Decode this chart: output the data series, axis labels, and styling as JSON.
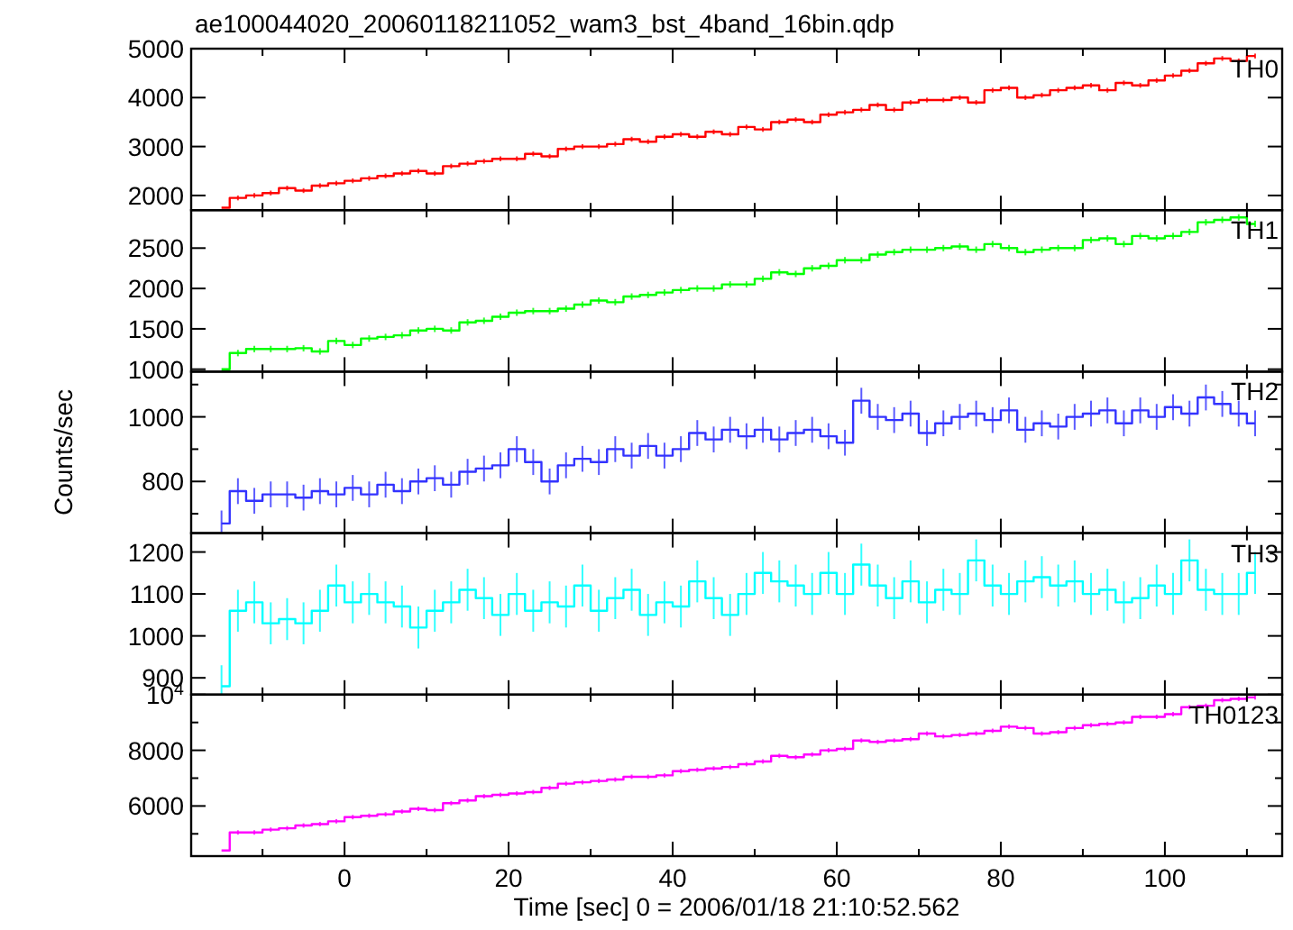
{
  "chart_data": [
    {
      "type": "step",
      "title": "ae100044020_20060118211052_wam3_bst_4band_16bin.qdp",
      "x": [
        -15,
        -13,
        -11,
        -9,
        -7,
        -5,
        -3,
        -1,
        1,
        3,
        5,
        7,
        9,
        11,
        13,
        15,
        17,
        19,
        21,
        23,
        25,
        27,
        29,
        31,
        33,
        35,
        37,
        39,
        41,
        43,
        45,
        47,
        49,
        51,
        53,
        55,
        57,
        59,
        61,
        63,
        65,
        67,
        69,
        71,
        73,
        75,
        77,
        79,
        81,
        83,
        85,
        87,
        89,
        91,
        93,
        95,
        97,
        99,
        101,
        103,
        105,
        107,
        109,
        111
      ],
      "xlim": [
        -18.7,
        114.3
      ],
      "xticks": [
        0,
        20,
        40,
        60,
        80,
        100,
        {
          "value": -10,
          "label": null
        },
        {
          "value": 10,
          "label": null
        },
        {
          "value": 30,
          "label": null
        },
        {
          "value": 50,
          "label": null
        },
        {
          "value": 70,
          "label": null
        },
        {
          "value": 90,
          "label": null
        },
        {
          "value": 110,
          "label": null
        }
      ],
      "ylim": [
        1700,
        5000
      ],
      "yticks": [
        2000,
        3000,
        4000,
        5000
      ],
      "tick_labels": "y",
      "annotations": [
        "TH0"
      ],
      "series": [
        {
          "color": "#ff0000",
          "values": [
            1750,
            1950,
            2000,
            2050,
            2150,
            2100,
            2200,
            2250,
            2300,
            2350,
            2400,
            2450,
            2500,
            2450,
            2600,
            2650,
            2700,
            2750,
            2750,
            2850,
            2800,
            2950,
            3000,
            3000,
            3050,
            3150,
            3100,
            3200,
            3250,
            3200,
            3300,
            3250,
            3400,
            3350,
            3500,
            3550,
            3500,
            3650,
            3700,
            3750,
            3850,
            3750,
            3900,
            3950,
            3950,
            4000,
            3900,
            4150,
            4200,
            4000,
            4050,
            4150,
            4200,
            4250,
            4150,
            4300,
            4250,
            4350,
            4450,
            4550,
            4700,
            4800,
            4750,
            4850
          ],
          "errors": [
            null,
            50,
            50,
            50,
            50,
            50,
            50,
            50,
            50,
            50,
            50,
            50,
            50,
            50,
            50,
            50,
            50,
            50,
            50,
            50,
            50,
            50,
            50,
            50,
            50,
            50,
            50,
            50,
            50,
            50,
            50,
            50,
            50,
            50,
            50,
            50,
            50,
            50,
            50,
            50,
            50,
            50,
            50,
            50,
            50,
            50,
            50,
            50,
            50,
            50,
            50,
            50,
            50,
            50,
            50,
            50,
            50,
            50,
            50,
            50,
            50,
            50,
            50,
            50
          ]
        }
      ]
    },
    {
      "type": "step",
      "x": [
        -15,
        -13,
        -11,
        -9,
        -7,
        -5,
        -3,
        -1,
        1,
        3,
        5,
        7,
        9,
        11,
        13,
        15,
        17,
        19,
        21,
        23,
        25,
        27,
        29,
        31,
        33,
        35,
        37,
        39,
        41,
        43,
        45,
        47,
        49,
        51,
        53,
        55,
        57,
        59,
        61,
        63,
        65,
        67,
        69,
        71,
        73,
        75,
        77,
        79,
        81,
        83,
        85,
        87,
        89,
        91,
        93,
        95,
        97,
        99,
        101,
        103,
        105,
        107,
        109,
        111
      ],
      "xlim": [
        -18.7,
        114.3
      ],
      "xticks": [
        0,
        20,
        40,
        60,
        80,
        100,
        {
          "value": -10,
          "label": null
        },
        {
          "value": 10,
          "label": null
        },
        {
          "value": 30,
          "label": null
        },
        {
          "value": 50,
          "label": null
        },
        {
          "value": 70,
          "label": null
        },
        {
          "value": 90,
          "label": null
        },
        {
          "value": 110,
          "label": null
        }
      ],
      "ylim": [
        970,
        2970
      ],
      "yticks": [
        1000,
        1500,
        2000,
        2500
      ],
      "tick_labels": "y",
      "annotations": [
        "TH1"
      ],
      "series": [
        {
          "color": "#00ff00",
          "values": [
            1000,
            1200,
            1250,
            1250,
            1250,
            1260,
            1220,
            1350,
            1300,
            1380,
            1400,
            1420,
            1480,
            1500,
            1480,
            1580,
            1600,
            1650,
            1700,
            1720,
            1720,
            1750,
            1800,
            1850,
            1830,
            1900,
            1920,
            1950,
            1980,
            2000,
            2000,
            2050,
            2050,
            2120,
            2200,
            2180,
            2250,
            2280,
            2350,
            2350,
            2420,
            2450,
            2480,
            2480,
            2500,
            2520,
            2480,
            2550,
            2500,
            2450,
            2480,
            2500,
            2500,
            2600,
            2620,
            2550,
            2650,
            2620,
            2650,
            2700,
            2820,
            2850,
            2880,
            2800
          ],
          "errors": [
            null,
            40,
            40,
            40,
            40,
            40,
            40,
            40,
            40,
            40,
            40,
            40,
            40,
            40,
            40,
            40,
            40,
            40,
            40,
            40,
            40,
            40,
            40,
            40,
            40,
            40,
            40,
            40,
            40,
            40,
            40,
            40,
            40,
            40,
            40,
            40,
            40,
            40,
            40,
            40,
            40,
            40,
            40,
            40,
            40,
            40,
            40,
            40,
            40,
            40,
            40,
            40,
            40,
            40,
            40,
            40,
            40,
            40,
            40,
            40,
            40,
            40,
            40,
            40
          ]
        }
      ]
    },
    {
      "type": "step",
      "ylabel": "Counts/sec",
      "x": [
        -15,
        -13,
        -11,
        -9,
        -7,
        -5,
        -3,
        -1,
        1,
        3,
        5,
        7,
        9,
        11,
        13,
        15,
        17,
        19,
        21,
        23,
        25,
        27,
        29,
        31,
        33,
        35,
        37,
        39,
        41,
        43,
        45,
        47,
        49,
        51,
        53,
        55,
        57,
        59,
        61,
        63,
        65,
        67,
        69,
        71,
        73,
        75,
        77,
        79,
        81,
        83,
        85,
        87,
        89,
        91,
        93,
        95,
        97,
        99,
        101,
        103,
        105,
        107,
        109,
        111
      ],
      "xlim": [
        -18.7,
        114.3
      ],
      "xticks": [
        0,
        20,
        40,
        60,
        80,
        100,
        {
          "value": -10,
          "label": null
        },
        {
          "value": 10,
          "label": null
        },
        {
          "value": 30,
          "label": null
        },
        {
          "value": 50,
          "label": null
        },
        {
          "value": 70,
          "label": null
        },
        {
          "value": 90,
          "label": null
        },
        {
          "value": 110,
          "label": null
        }
      ],
      "ylim": [
        640,
        1140
      ],
      "yticks": [
        800,
        1000,
        {
          "value": 700,
          "label": null
        },
        {
          "value": 900,
          "label": null
        },
        {
          "value": 1100,
          "label": null
        }
      ],
      "tick_labels": "y",
      "annotations": [
        "TH2"
      ],
      "series": [
        {
          "color": "#3333ff",
          "values": [
            670,
            770,
            740,
            760,
            760,
            750,
            770,
            760,
            780,
            760,
            790,
            770,
            800,
            810,
            790,
            830,
            840,
            850,
            900,
            860,
            800,
            850,
            870,
            860,
            900,
            880,
            910,
            880,
            900,
            950,
            930,
            960,
            940,
            960,
            930,
            950,
            960,
            940,
            920,
            1050,
            1000,
            990,
            1010,
            950,
            980,
            1000,
            1010,
            990,
            1020,
            960,
            980,
            970,
            1000,
            1010,
            1020,
            980,
            1020,
            1000,
            1030,
            1010,
            1060,
            1040,
            1010,
            980
          ],
          "errors": [
            40,
            40,
            40,
            40,
            40,
            40,
            40,
            40,
            40,
            40,
            40,
            40,
            40,
            40,
            40,
            40,
            40,
            40,
            40,
            40,
            40,
            40,
            40,
            40,
            40,
            40,
            40,
            40,
            40,
            40,
            40,
            40,
            40,
            40,
            40,
            40,
            40,
            40,
            40,
            40,
            40,
            40,
            40,
            40,
            40,
            40,
            40,
            40,
            40,
            40,
            40,
            40,
            40,
            40,
            40,
            40,
            40,
            40,
            40,
            40,
            40,
            40,
            40,
            40
          ]
        }
      ]
    },
    {
      "type": "step",
      "x": [
        -15,
        -13,
        -11,
        -9,
        -7,
        -5,
        -3,
        -1,
        1,
        3,
        5,
        7,
        9,
        11,
        13,
        15,
        17,
        19,
        21,
        23,
        25,
        27,
        29,
        31,
        33,
        35,
        37,
        39,
        41,
        43,
        45,
        47,
        49,
        51,
        53,
        55,
        57,
        59,
        61,
        63,
        65,
        67,
        69,
        71,
        73,
        75,
        77,
        79,
        81,
        83,
        85,
        87,
        89,
        91,
        93,
        95,
        97,
        99,
        101,
        103,
        105,
        107,
        109,
        111
      ],
      "xlim": [
        -18.7,
        114.3
      ],
      "xticks": [
        0,
        20,
        40,
        60,
        80,
        100,
        {
          "value": -10,
          "label": null
        },
        {
          "value": 10,
          "label": null
        },
        {
          "value": 30,
          "label": null
        },
        {
          "value": 50,
          "label": null
        },
        {
          "value": 70,
          "label": null
        },
        {
          "value": 90,
          "label": null
        },
        {
          "value": 110,
          "label": null
        }
      ],
      "ylim": [
        860,
        1245
      ],
      "yticks": [
        900,
        1000,
        1100,
        1200
      ],
      "tick_labels": "y",
      "annotations": [
        "TH3"
      ],
      "series": [
        {
          "color": "#00ffff",
          "values": [
            880,
            1060,
            1080,
            1030,
            1040,
            1030,
            1060,
            1120,
            1080,
            1100,
            1080,
            1070,
            1020,
            1060,
            1080,
            1110,
            1090,
            1050,
            1100,
            1060,
            1080,
            1070,
            1120,
            1060,
            1090,
            1110,
            1050,
            1080,
            1070,
            1130,
            1090,
            1050,
            1100,
            1150,
            1130,
            1120,
            1100,
            1150,
            1100,
            1170,
            1120,
            1090,
            1130,
            1080,
            1110,
            1100,
            1180,
            1120,
            1100,
            1130,
            1140,
            1120,
            1130,
            1100,
            1110,
            1080,
            1090,
            1120,
            1100,
            1180,
            1110,
            1100,
            1100,
            1150
          ],
          "errors": [
            50,
            50,
            50,
            50,
            50,
            50,
            50,
            50,
            50,
            50,
            50,
            50,
            50,
            50,
            50,
            50,
            50,
            50,
            50,
            50,
            50,
            50,
            50,
            50,
            50,
            50,
            50,
            50,
            50,
            50,
            50,
            50,
            50,
            50,
            50,
            50,
            50,
            50,
            50,
            50,
            50,
            50,
            50,
            50,
            50,
            50,
            50,
            50,
            50,
            50,
            50,
            50,
            50,
            50,
            50,
            50,
            50,
            50,
            50,
            50,
            50,
            50,
            50,
            50
          ]
        }
      ]
    },
    {
      "type": "step",
      "xlabel": "Time [sec] 0 = 2006/01/18 21:10:52.562",
      "x": [
        -15,
        -13,
        -11,
        -9,
        -7,
        -5,
        -3,
        -1,
        1,
        3,
        5,
        7,
        9,
        11,
        13,
        15,
        17,
        19,
        21,
        23,
        25,
        27,
        29,
        31,
        33,
        35,
        37,
        39,
        41,
        43,
        45,
        47,
        49,
        51,
        53,
        55,
        57,
        59,
        61,
        63,
        65,
        67,
        69,
        71,
        73,
        75,
        77,
        79,
        81,
        83,
        85,
        87,
        89,
        91,
        93,
        95,
        97,
        99,
        101,
        103,
        105,
        107,
        109,
        111
      ],
      "xlim": [
        -18.7,
        114.3
      ],
      "xticks": [
        0,
        20,
        40,
        60,
        80,
        100,
        {
          "value": -10,
          "label": null
        },
        {
          "value": 10,
          "label": null
        },
        {
          "value": 30,
          "label": null
        },
        {
          "value": 50,
          "label": null
        },
        {
          "value": 70,
          "label": null
        },
        {
          "value": 90,
          "label": null
        },
        {
          "value": 110,
          "label": null
        }
      ],
      "ylim": [
        4200,
        10000
      ],
      "yticks": [
        6000,
        8000,
        {
          "value": 10000,
          "label": "10$^{4}$"
        },
        {
          "value": 5000,
          "label": null
        },
        {
          "value": 7000,
          "label": null
        },
        {
          "value": 9000,
          "label": null
        }
      ],
      "annotations": [
        "TH0123"
      ],
      "series": [
        {
          "color": "#ff00ff",
          "values": [
            4400,
            5050,
            5050,
            5150,
            5200,
            5300,
            5350,
            5450,
            5600,
            5650,
            5700,
            5800,
            5900,
            5850,
            6100,
            6200,
            6350,
            6400,
            6450,
            6500,
            6650,
            6800,
            6850,
            6900,
            6950,
            7050,
            7050,
            7100,
            7250,
            7300,
            7350,
            7400,
            7500,
            7600,
            7800,
            7750,
            7850,
            8000,
            8050,
            8350,
            8300,
            8350,
            8400,
            8600,
            8500,
            8550,
            8600,
            8700,
            8850,
            8800,
            8600,
            8650,
            8800,
            8900,
            8950,
            9000,
            9200,
            9200,
            9300,
            9550,
            9600,
            9800,
            9850,
            9900
          ],
          "errors": [
            null,
            80,
            80,
            80,
            80,
            80,
            80,
            80,
            80,
            80,
            80,
            80,
            80,
            80,
            80,
            80,
            80,
            80,
            80,
            80,
            80,
            80,
            80,
            80,
            80,
            80,
            80,
            80,
            80,
            80,
            80,
            80,
            80,
            80,
            80,
            80,
            80,
            80,
            80,
            80,
            80,
            80,
            80,
            80,
            80,
            80,
            80,
            80,
            80,
            80,
            80,
            80,
            80,
            80,
            80,
            80,
            80,
            80,
            80,
            80,
            80,
            80,
            80,
            80
          ]
        }
      ]
    }
  ]
}
